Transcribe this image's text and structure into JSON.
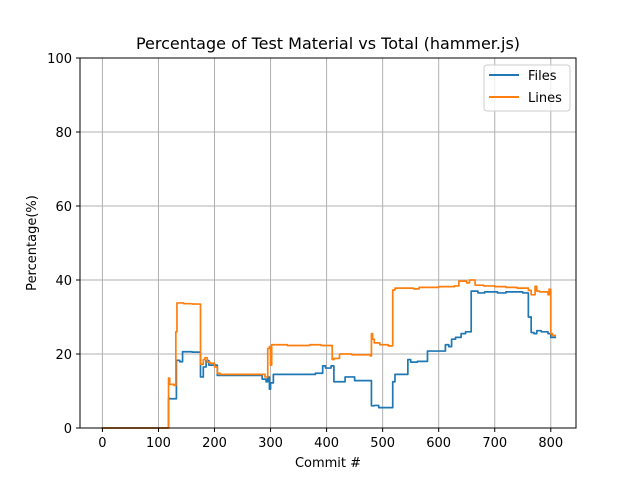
{
  "chart_data": {
    "type": "line",
    "title": "Percentage of Test Material vs Total (hammer.js)",
    "xlabel": "Commit #",
    "ylabel": "Percentage(%)",
    "xlim": [
      -40,
      845
    ],
    "ylim": [
      0,
      100
    ],
    "xticks": [
      0,
      100,
      200,
      300,
      400,
      500,
      600,
      700,
      800
    ],
    "yticks": [
      0,
      20,
      40,
      60,
      80,
      100
    ],
    "grid": true,
    "legend_position": "top-right",
    "series": [
      {
        "name": "Files",
        "color": "#1f77b4",
        "points": [
          [
            0,
            0
          ],
          [
            118,
            0
          ],
          [
            118,
            8
          ],
          [
            120,
            8
          ],
          [
            120,
            7.9
          ],
          [
            132,
            7.9
          ],
          [
            132,
            18.3
          ],
          [
            138,
            18.3
          ],
          [
            138,
            17.9
          ],
          [
            143,
            17.9
          ],
          [
            143,
            20.6
          ],
          [
            160,
            20.6
          ],
          [
            160,
            20.5
          ],
          [
            175,
            20.5
          ],
          [
            175,
            13.8
          ],
          [
            180,
            13.8
          ],
          [
            180,
            16.5
          ],
          [
            185,
            16.5
          ],
          [
            185,
            18.2
          ],
          [
            190,
            18.2
          ],
          [
            190,
            17
          ],
          [
            205,
            17
          ],
          [
            205,
            14.2
          ],
          [
            285,
            14.2
          ],
          [
            285,
            13.2
          ],
          [
            292,
            13.2
          ],
          [
            292,
            12.5
          ],
          [
            295,
            12.5
          ],
          [
            295,
            13.8
          ],
          [
            298,
            13.8
          ],
          [
            298,
            10.5
          ],
          [
            300,
            10.5
          ],
          [
            300,
            12.2
          ],
          [
            305,
            12.2
          ],
          [
            305,
            14.5
          ],
          [
            380,
            14.5
          ],
          [
            380,
            14.8
          ],
          [
            393,
            14.8
          ],
          [
            393,
            16.8
          ],
          [
            398,
            16.8
          ],
          [
            398,
            16.2
          ],
          [
            408,
            16.2
          ],
          [
            408,
            16.8
          ],
          [
            413,
            16.8
          ],
          [
            413,
            12.5
          ],
          [
            433,
            12.5
          ],
          [
            433,
            13.8
          ],
          [
            450,
            13.8
          ],
          [
            450,
            12.8
          ],
          [
            480,
            12.8
          ],
          [
            480,
            6
          ],
          [
            485,
            6
          ],
          [
            485,
            6.1
          ],
          [
            493,
            6.1
          ],
          [
            493,
            5.5
          ],
          [
            518,
            5.5
          ],
          [
            518,
            12.5
          ],
          [
            522,
            12.5
          ],
          [
            522,
            14.5
          ],
          [
            545,
            14.5
          ],
          [
            545,
            18.5
          ],
          [
            550,
            18.5
          ],
          [
            550,
            17.8
          ],
          [
            562,
            17.8
          ],
          [
            562,
            18
          ],
          [
            580,
            18
          ],
          [
            580,
            20.8
          ],
          [
            612,
            20.8
          ],
          [
            612,
            22.5
          ],
          [
            618,
            22.5
          ],
          [
            618,
            22
          ],
          [
            623,
            22
          ],
          [
            623,
            24
          ],
          [
            630,
            24
          ],
          [
            630,
            24.5
          ],
          [
            640,
            24.5
          ],
          [
            640,
            25.5
          ],
          [
            648,
            25.5
          ],
          [
            648,
            26
          ],
          [
            658,
            26
          ],
          [
            658,
            37
          ],
          [
            670,
            37
          ],
          [
            670,
            36.5
          ],
          [
            682,
            36.5
          ],
          [
            682,
            36.8
          ],
          [
            705,
            36.8
          ],
          [
            705,
            36.5
          ],
          [
            720,
            36.5
          ],
          [
            720,
            36.8
          ],
          [
            750,
            36.8
          ],
          [
            750,
            36.5
          ],
          [
            760,
            36.5
          ],
          [
            760,
            30
          ],
          [
            765,
            30
          ],
          [
            765,
            25.8
          ],
          [
            770,
            25.8
          ],
          [
            770,
            25.5
          ],
          [
            775,
            25.5
          ],
          [
            775,
            26.3
          ],
          [
            783,
            26.3
          ],
          [
            783,
            26
          ],
          [
            795,
            26
          ],
          [
            795,
            25.5
          ],
          [
            800,
            25.5
          ],
          [
            800,
            24.5
          ],
          [
            808,
            24.5
          ]
        ]
      },
      {
        "name": "Lines",
        "color": "#ff7f0e",
        "points": [
          [
            0,
            0
          ],
          [
            118,
            0
          ],
          [
            118,
            13.5
          ],
          [
            120,
            13.5
          ],
          [
            120,
            11.8
          ],
          [
            128,
            11.8
          ],
          [
            128,
            11.5
          ],
          [
            131,
            11.5
          ],
          [
            131,
            26
          ],
          [
            133,
            26
          ],
          [
            133,
            33.8
          ],
          [
            145,
            33.8
          ],
          [
            145,
            33.6
          ],
          [
            160,
            33.6
          ],
          [
            160,
            33.5
          ],
          [
            175,
            33.5
          ],
          [
            175,
            17.2
          ],
          [
            180,
            17.2
          ],
          [
            180,
            18.5
          ],
          [
            183,
            18.5
          ],
          [
            183,
            19
          ],
          [
            187,
            19
          ],
          [
            187,
            17.8
          ],
          [
            192,
            17.8
          ],
          [
            192,
            17.5
          ],
          [
            200,
            17.5
          ],
          [
            200,
            16.5
          ],
          [
            205,
            16.5
          ],
          [
            205,
            14.8
          ],
          [
            210,
            14.8
          ],
          [
            210,
            14.5
          ],
          [
            290,
            14.5
          ],
          [
            290,
            13.8
          ],
          [
            295,
            13.8
          ],
          [
            295,
            21.5
          ],
          [
            298,
            21.5
          ],
          [
            298,
            22
          ],
          [
            300,
            22
          ],
          [
            300,
            17
          ],
          [
            302,
            17
          ],
          [
            302,
            22.5
          ],
          [
            330,
            22.5
          ],
          [
            330,
            22.3
          ],
          [
            370,
            22.3
          ],
          [
            370,
            22.5
          ],
          [
            390,
            22.5
          ],
          [
            390,
            22.3
          ],
          [
            410,
            22.3
          ],
          [
            410,
            18.5
          ],
          [
            413,
            18.5
          ],
          [
            413,
            18.8
          ],
          [
            423,
            18.8
          ],
          [
            423,
            20
          ],
          [
            445,
            20
          ],
          [
            445,
            19.8
          ],
          [
            478,
            19.8
          ],
          [
            478,
            19.5
          ],
          [
            480,
            19.5
          ],
          [
            480,
            25.5
          ],
          [
            482,
            25.5
          ],
          [
            482,
            24
          ],
          [
            485,
            24
          ],
          [
            485,
            23
          ],
          [
            495,
            23
          ],
          [
            495,
            22.5
          ],
          [
            510,
            22.5
          ],
          [
            510,
            22.2
          ],
          [
            518,
            22.2
          ],
          [
            518,
            37.3
          ],
          [
            522,
            37.3
          ],
          [
            522,
            37.8
          ],
          [
            555,
            37.8
          ],
          [
            555,
            37.6
          ],
          [
            565,
            37.6
          ],
          [
            565,
            38
          ],
          [
            600,
            38
          ],
          [
            600,
            38.2
          ],
          [
            628,
            38.2
          ],
          [
            628,
            38.4
          ],
          [
            636,
            38.4
          ],
          [
            636,
            39.7
          ],
          [
            650,
            39.7
          ],
          [
            650,
            39.2
          ],
          [
            655,
            39.2
          ],
          [
            655,
            40
          ],
          [
            665,
            40
          ],
          [
            665,
            38.6
          ],
          [
            680,
            38.6
          ],
          [
            680,
            38.4
          ],
          [
            700,
            38.4
          ],
          [
            700,
            38.2
          ],
          [
            720,
            38.2
          ],
          [
            720,
            38
          ],
          [
            740,
            38
          ],
          [
            740,
            37.8
          ],
          [
            760,
            37.8
          ],
          [
            760,
            37.2
          ],
          [
            765,
            37.2
          ],
          [
            765,
            36
          ],
          [
            772,
            36
          ],
          [
            772,
            38.3
          ],
          [
            775,
            38.3
          ],
          [
            775,
            37
          ],
          [
            780,
            37
          ],
          [
            780,
            36.8
          ],
          [
            795,
            36.8
          ],
          [
            795,
            36
          ],
          [
            797,
            36
          ],
          [
            797,
            37.5
          ],
          [
            800,
            37.5
          ],
          [
            800,
            25.5
          ],
          [
            803,
            25.5
          ],
          [
            803,
            25
          ],
          [
            808,
            25
          ]
        ]
      }
    ]
  }
}
